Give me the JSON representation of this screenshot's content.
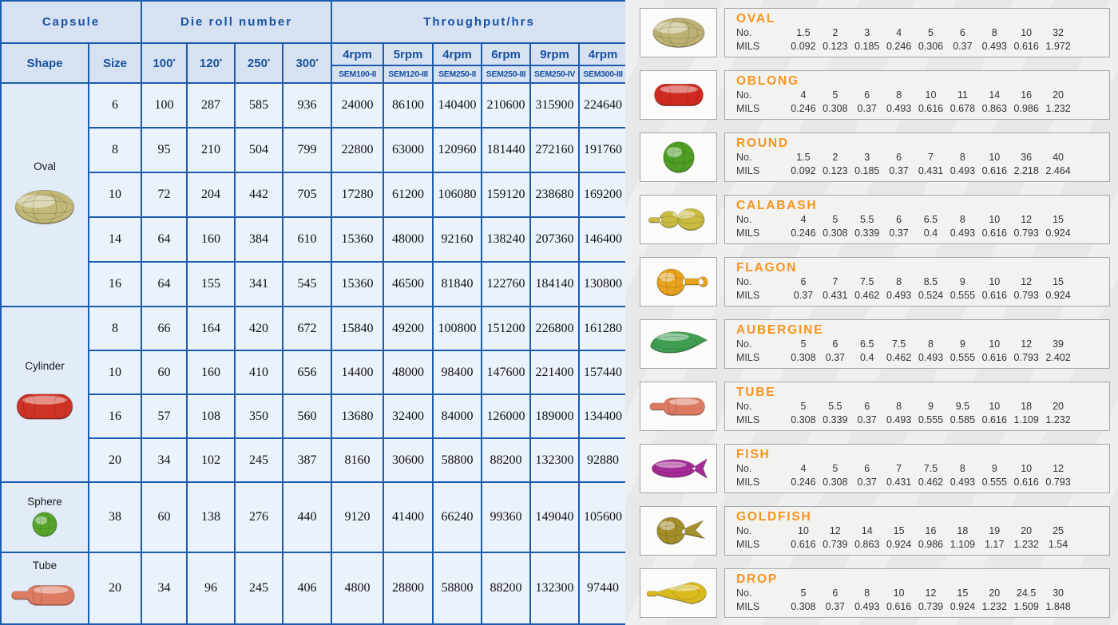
{
  "colors": {
    "table_border": "#1d5cac",
    "table_header_text": "#17519e",
    "table_header_bg": "#d6e1f2",
    "table_cell_bg": "#eaf2fb",
    "panel_title_orange": "#f7941d",
    "panel_box_border": "#a6a6a6"
  },
  "left_table": {
    "header": {
      "capsule": "Capsule",
      "die_roll": "Die roll number",
      "throughput": "Throughput/hrs",
      "shape": "Shape",
      "size": "Size",
      "deg_mark": "•",
      "die_columns": [
        "100",
        "120",
        "250",
        "300"
      ],
      "throughput_columns": [
        {
          "rpm": "4rpm",
          "machine": "SEM100-II"
        },
        {
          "rpm": "5rpm",
          "machine": "SEM120-III"
        },
        {
          "rpm": "4rpm",
          "machine": "SEM250-II"
        },
        {
          "rpm": "6rpm",
          "machine": "SEM250-III"
        },
        {
          "rpm": "9rpm",
          "machine": "SEM250-IV"
        },
        {
          "rpm": "4rpm",
          "machine": "SEM300-III"
        }
      ]
    },
    "groups": [
      {
        "shape": "Oval",
        "icon": "oval",
        "color": "#c2b878",
        "rows": [
          {
            "size": "6",
            "values": [
              "100",
              "287",
              "585",
              "936",
              "24000",
              "86100",
              "140400",
              "210600",
              "315900",
              "224640"
            ]
          },
          {
            "size": "8",
            "values": [
              "95",
              "210",
              "504",
              "799",
              "22800",
              "63000",
              "120960",
              "181440",
              "272160",
              "191760"
            ]
          },
          {
            "size": "10",
            "values": [
              "72",
              "204",
              "442",
              "705",
              "17280",
              "61200",
              "106080",
              "159120",
              "238680",
              "169200"
            ]
          },
          {
            "size": "14",
            "values": [
              "64",
              "160",
              "384",
              "610",
              "15360",
              "48000",
              "92160",
              "138240",
              "207360",
              "146400"
            ]
          },
          {
            "size": "16",
            "values": [
              "64",
              "155",
              "341",
              "545",
              "15360",
              "46500",
              "81840",
              "122760",
              "184140",
              "130800"
            ]
          }
        ]
      },
      {
        "shape": "Cylinder",
        "icon": "oblong",
        "color": "#cf3326",
        "rows": [
          {
            "size": "8",
            "values": [
              "66",
              "164",
              "420",
              "672",
              "15840",
              "49200",
              "100800",
              "151200",
              "226800",
              "161280"
            ]
          },
          {
            "size": "10",
            "values": [
              "60",
              "160",
              "410",
              "656",
              "14400",
              "48000",
              "98400",
              "147600",
              "221400",
              "157440"
            ]
          },
          {
            "size": "16",
            "values": [
              "57",
              "108",
              "350",
              "560",
              "13680",
              "32400",
              "84000",
              "126000",
              "189000",
              "134400"
            ]
          },
          {
            "size": "20",
            "values": [
              "34",
              "102",
              "245",
              "387",
              "8160",
              "30600",
              "58800",
              "88200",
              "132300",
              "92880"
            ]
          }
        ]
      },
      {
        "shape": "Sphere",
        "icon": "round",
        "color": "#55a52c",
        "rows": [
          {
            "size": "38",
            "values": [
              "60",
              "138",
              "276",
              "440",
              "9120",
              "41400",
              "66240",
              "99360",
              "149040",
              "105600"
            ]
          }
        ]
      },
      {
        "shape": "Tube",
        "icon": "tube",
        "color": "#dd7a62",
        "rows": [
          {
            "size": "20",
            "values": [
              "34",
              "96",
              "245",
              "406",
              "4800",
              "28800",
              "58800",
              "88200",
              "132300",
              "97440"
            ]
          }
        ]
      }
    ]
  },
  "right_panel": {
    "row_labels": {
      "no": "No.",
      "mils": "MILS"
    },
    "shapes": [
      {
        "name": "OVAL",
        "icon": "oval",
        "color": "#bdb274",
        "no": [
          "1.5",
          "2",
          "3",
          "4",
          "5",
          "6",
          "8",
          "10",
          "32"
        ],
        "mils": [
          "0.092",
          "0.123",
          "0.185",
          "0.246",
          "0.306",
          "0.37",
          "0.493",
          "0.616",
          "1.972"
        ]
      },
      {
        "name": "OBLONG",
        "icon": "oblong",
        "color": "#cf2a20",
        "no": [
          "4",
          "5",
          "6",
          "8",
          "10",
          "11",
          "14",
          "16",
          "20"
        ],
        "mils": [
          "0.246",
          "0.308",
          "0.37",
          "0.493",
          "0.616",
          "0.678",
          "0.863",
          "0.986",
          "1.232"
        ]
      },
      {
        "name": "ROUND",
        "icon": "round",
        "color": "#4f9e26",
        "no": [
          "1.5",
          "2",
          "3",
          "6",
          "7",
          "8",
          "10",
          "36",
          "40"
        ],
        "mils": [
          "0.092",
          "0.123",
          "0.185",
          "0.37",
          "0.431",
          "0.493",
          "0.616",
          "2.218",
          "2.464"
        ]
      },
      {
        "name": "CALABASH",
        "icon": "calabash",
        "color": "#c9bb3f",
        "no": [
          "4",
          "5",
          "5.5",
          "6",
          "6.5",
          "8",
          "10",
          "12",
          "15"
        ],
        "mils": [
          "0.246",
          "0.308",
          "0.339",
          "0.37",
          "0.4",
          "0.493",
          "0.616",
          "0.793",
          "0.924"
        ]
      },
      {
        "name": "FLAGON",
        "icon": "flagon",
        "color": "#e8a21c",
        "no": [
          "6",
          "7",
          "7.5",
          "8",
          "8.5",
          "9",
          "10",
          "12",
          "15"
        ],
        "mils": [
          "0.37",
          "0.431",
          "0.462",
          "0.493",
          "0.524",
          "0.555",
          "0.616",
          "0.793",
          "0.924"
        ]
      },
      {
        "name": "AUBERGINE",
        "icon": "aubergine",
        "color": "#3f9e52",
        "no": [
          "5",
          "6",
          "6.5",
          "7.5",
          "8",
          "9",
          "10",
          "12",
          "39"
        ],
        "mils": [
          "0.308",
          "0.37",
          "0.4",
          "0.462",
          "0.493",
          "0.555",
          "0.616",
          "0.793",
          "2.402"
        ]
      },
      {
        "name": "TUBE",
        "icon": "tube",
        "color": "#dd7a62",
        "no": [
          "5",
          "5.5",
          "6",
          "8",
          "9",
          "9.5",
          "10",
          "18",
          "20"
        ],
        "mils": [
          "0.308",
          "0.339",
          "0.37",
          "0.493",
          "0.555",
          "0.585",
          "0.616",
          "1.109",
          "1.232"
        ]
      },
      {
        "name": "FISH",
        "icon": "fish",
        "color": "#a62b96",
        "no": [
          "4",
          "5",
          "6",
          "7",
          "7.5",
          "8",
          "9",
          "10",
          "12"
        ],
        "mils": [
          "0.246",
          "0.308",
          "0.37",
          "0.431",
          "0.462",
          "0.493",
          "0.555",
          "0.616",
          "0.793"
        ]
      },
      {
        "name": "GOLDFISH",
        "icon": "goldfish",
        "color": "#a58e2c",
        "no": [
          "10",
          "12",
          "14",
          "15",
          "16",
          "18",
          "19",
          "20",
          "25"
        ],
        "mils": [
          "0.616",
          "0.739",
          "0.863",
          "0.924",
          "0.986",
          "1.109",
          "1.17",
          "1.232",
          "1.54"
        ]
      },
      {
        "name": "DROP",
        "icon": "drop",
        "color": "#d9ba1e",
        "no": [
          "5",
          "6",
          "8",
          "10",
          "12",
          "15",
          "20",
          "24.5",
          "30"
        ],
        "mils": [
          "0.308",
          "0.37",
          "0.493",
          "0.616",
          "0.739",
          "0.924",
          "1.232",
          "1.509",
          "1.848"
        ]
      }
    ]
  }
}
